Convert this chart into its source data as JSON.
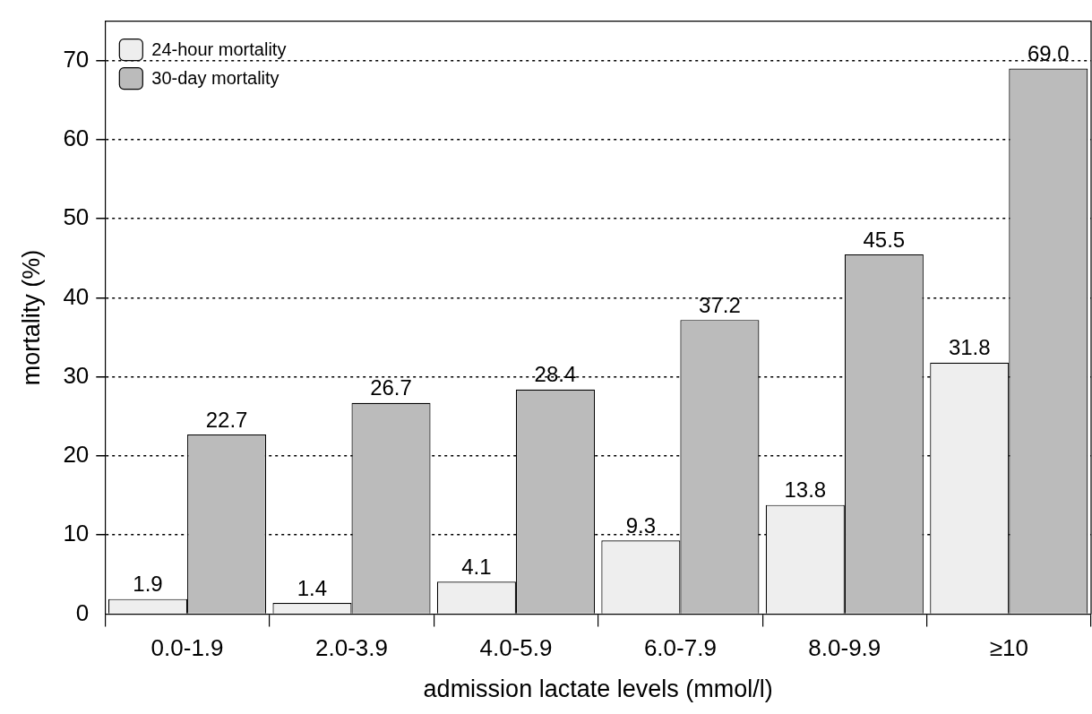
{
  "chart_data": {
    "type": "bar",
    "xlabel": "admission lactate levels (mmol/l)",
    "ylabel": "mortality (%)",
    "categories": [
      "0.0-1.9",
      "2.0-3.9",
      "4.0-5.9",
      "6.0-7.9",
      "8.0-9.9",
      "≥10"
    ],
    "series": [
      {
        "name": "24-hour mortality",
        "color": "#eeeeee",
        "values": [
          1.9,
          1.4,
          4.1,
          9.3,
          13.8,
          31.8
        ],
        "value_labels": [
          "1.9",
          "1.4",
          "4.1",
          "9.3",
          "13.8",
          "31.8"
        ]
      },
      {
        "name": "30-day mortality",
        "color": "#bbbbbb",
        "values": [
          22.7,
          26.7,
          28.4,
          37.2,
          45.5,
          69.0
        ],
        "value_labels": [
          "22.7",
          "26.7",
          "28.4",
          "37.2",
          "45.5",
          "69.0"
        ]
      }
    ],
    "ylim": [
      0,
      75
    ],
    "yticks": [
      0,
      10,
      20,
      30,
      40,
      50,
      60,
      70
    ],
    "grid": "y",
    "legend": "top left"
  }
}
